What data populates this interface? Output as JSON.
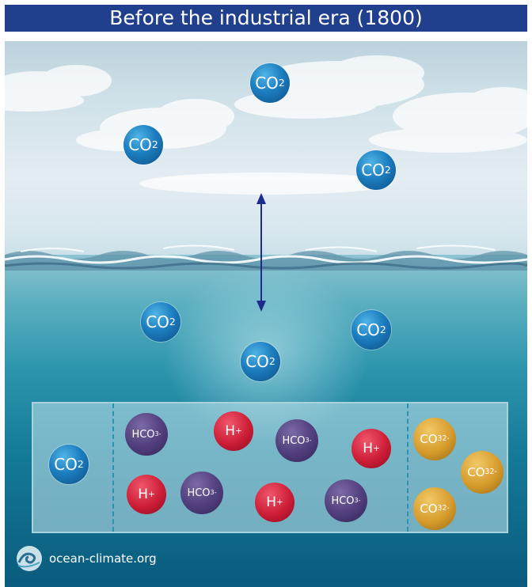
{
  "title": "Before the industrial era (1800)",
  "molecules": {
    "co2": {
      "base": "CO",
      "sub": "2"
    },
    "hco3": {
      "base": "HCO",
      "sub": "3",
      "sup": "-"
    },
    "hplus": {
      "base": "H",
      "sup": "+"
    },
    "co3": {
      "base": "CO",
      "sub": "3",
      "sup": "2-"
    }
  },
  "logo": {
    "text": "ocean-climate.org"
  },
  "colors": {
    "title_bar": "#203f8c",
    "arrow": "#1f2c8f",
    "co2": "#1d7ec0",
    "hco3": "#53417f",
    "hplus": "#cc1d36",
    "co3": "#d69b2c"
  }
}
